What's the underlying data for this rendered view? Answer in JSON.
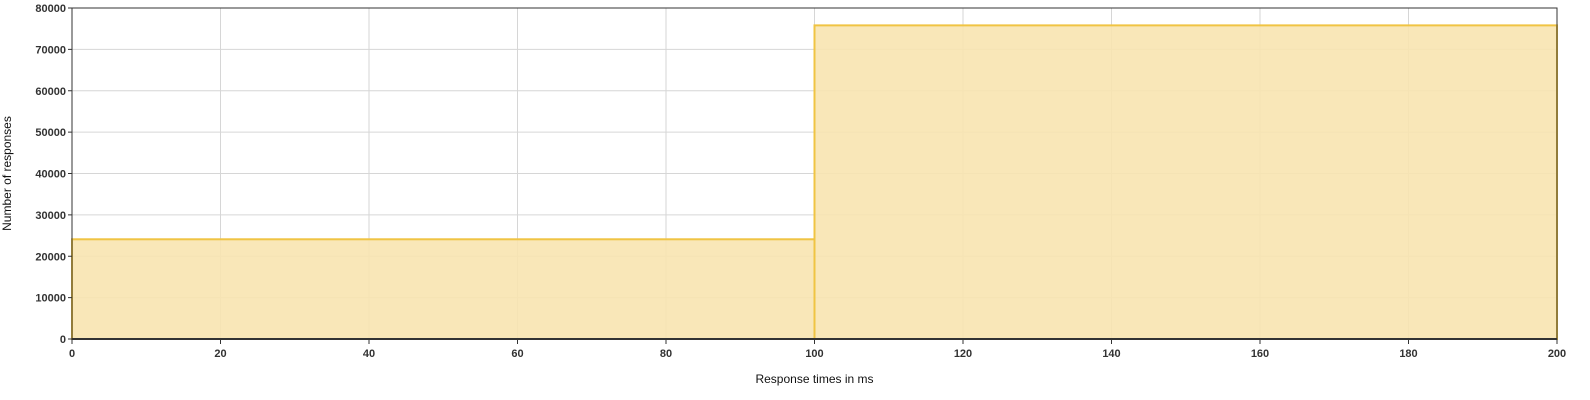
{
  "chart_data": {
    "type": "bar",
    "xlabel": "Response times in ms",
    "ylabel": "Number of responses",
    "xlim": [
      0,
      200
    ],
    "ylim": [
      0,
      80000
    ],
    "xticks": [
      0,
      20,
      40,
      60,
      80,
      100,
      120,
      140,
      160,
      180,
      200
    ],
    "yticks": [
      0,
      10000,
      20000,
      30000,
      40000,
      50000,
      60000,
      70000,
      80000
    ],
    "grid": true,
    "bins": [
      {
        "start": 0,
        "end": 100,
        "value": 24100
      },
      {
        "start": 100,
        "end": 200,
        "value": 75800
      }
    ],
    "colors": {
      "fill": "#f8e4b0",
      "stroke": "#f0c443",
      "grid": "#d6d6d6",
      "axis": "#333333"
    }
  }
}
